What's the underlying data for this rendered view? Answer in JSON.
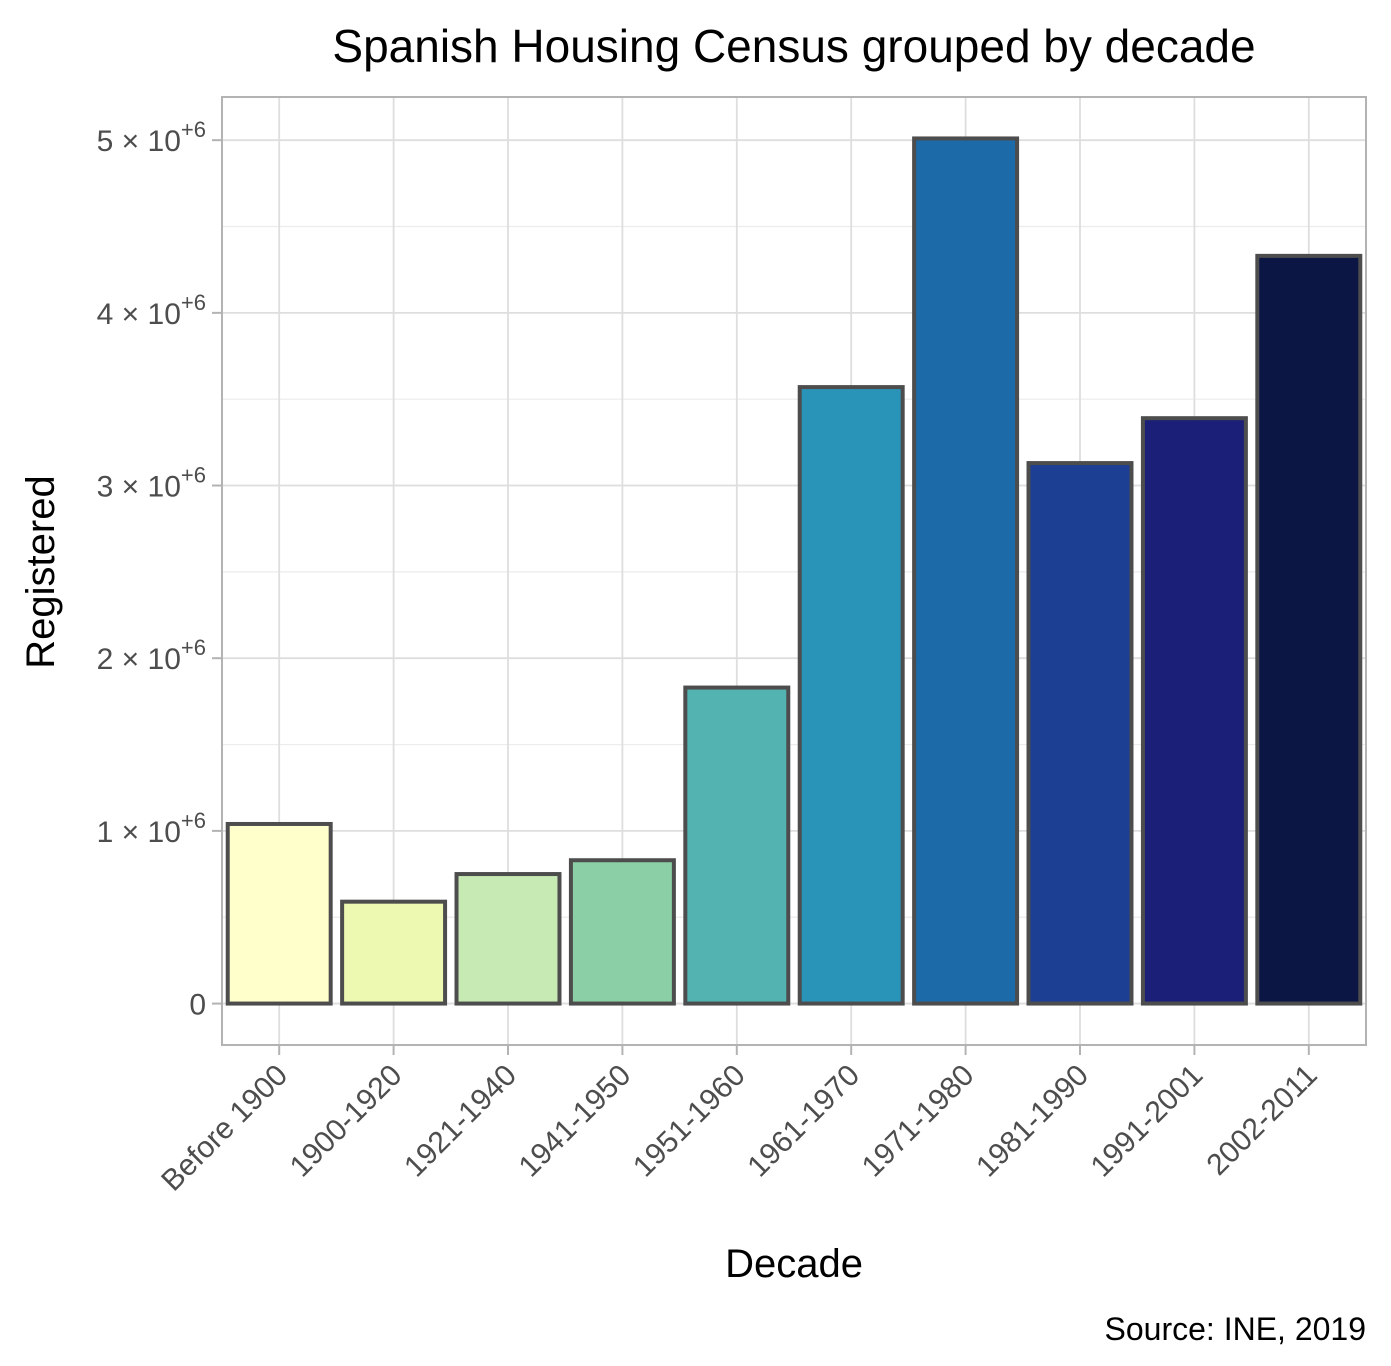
{
  "chart_data": {
    "type": "bar",
    "title": "Spanish Housing Census grouped by decade",
    "xlabel": "Decade",
    "ylabel": "Registered",
    "caption": "Source: INE, 2019",
    "categories": [
      "Before 1900",
      "1900-1920",
      "1921-1940",
      "1941-1950",
      "1951-1960",
      "1961-1970",
      "1971-1980",
      "1981-1990",
      "1991-2001",
      "2002-2011"
    ],
    "values": [
      1040000,
      590000,
      750000,
      830000,
      1830000,
      3570000,
      5010000,
      3130000,
      3390000,
      4330000
    ],
    "colors": [
      "#FFFFCC",
      "#EDF8B1",
      "#C7E9B4",
      "#8BCFA6",
      "#52B3B1",
      "#2A94B8",
      "#1D6AA8",
      "#1C3F93",
      "#1C1F78",
      "#0B1645"
    ],
    "ylim": [
      -240000,
      5250000
    ],
    "yticks": [
      {
        "value": 0,
        "mantissa": "0",
        "exponent": ""
      },
      {
        "value": 1000000,
        "mantissa": "1",
        "exponent": "+6"
      },
      {
        "value": 2000000,
        "mantissa": "2",
        "exponent": "+6"
      },
      {
        "value": 3000000,
        "mantissa": "3",
        "exponent": "+6"
      },
      {
        "value": 4000000,
        "mantissa": "4",
        "exponent": "+6"
      },
      {
        "value": 5000000,
        "mantissa": "5",
        "exponent": "+6"
      }
    ],
    "grid": true,
    "legend": "none"
  }
}
